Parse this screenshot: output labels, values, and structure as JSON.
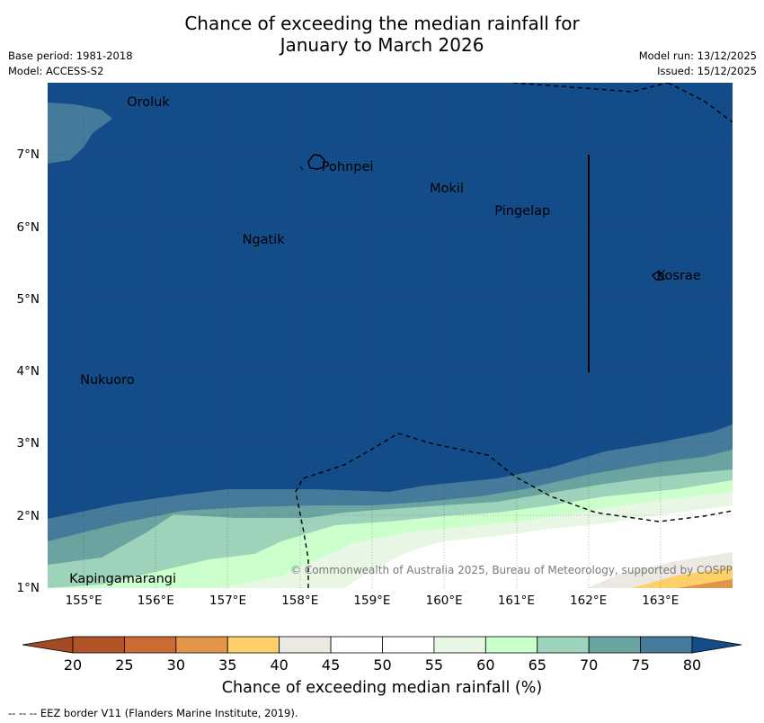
{
  "title": {
    "line1": "Chance of exceeding the median rainfall for",
    "line2": "January to March 2026"
  },
  "meta": {
    "base_period": "Base period: 1981-2018",
    "model": "Model: ACCESS-S2",
    "model_run": "Model run: 13/12/2025",
    "issued": "Issued: 15/12/2025"
  },
  "map": {
    "places": [
      {
        "name": "Oroluk",
        "lat": 7.7,
        "lon": 155.6
      },
      {
        "name": "Pohnpei",
        "lat": 6.8,
        "lon": 158.3
      },
      {
        "name": "Mokil",
        "lat": 6.5,
        "lon": 159.8
      },
      {
        "name": "Pingelap",
        "lat": 6.2,
        "lon": 160.7
      },
      {
        "name": "Ngatik",
        "lat": 5.8,
        "lon": 157.2
      },
      {
        "name": "Kosrae",
        "lat": 5.3,
        "lon": 162.95
      },
      {
        "name": "Nukuoro",
        "lat": 3.85,
        "lon": 154.95
      },
      {
        "name": "Kapingamarangi",
        "lat": 1.1,
        "lon": 154.8
      }
    ],
    "lat_ticks": [
      "1°N",
      "2°N",
      "3°N",
      "4°N",
      "5°N",
      "6°N",
      "7°N"
    ],
    "lon_ticks": [
      "155°E",
      "156°E",
      "157°E",
      "158°E",
      "159°E",
      "160°E",
      "161°E",
      "162°E",
      "163°E"
    ],
    "copyright": "© Commonwealth of Australia 2025, Bureau of Meteorology, supported by COSPPac"
  },
  "colorbar": {
    "ticks": [
      "20",
      "25",
      "30",
      "35",
      "40",
      "45",
      "50",
      "55",
      "60",
      "65",
      "70",
      "75",
      "80"
    ],
    "colors": [
      "#a44a24",
      "#b3532a",
      "#cb6a35",
      "#e2954a",
      "#fdd06a",
      "#ece9e3",
      "#ffffff",
      "#ffffff",
      "#e8f6e4",
      "#cbffcb",
      "#9dd3bb",
      "#6aa3a0",
      "#457a9a",
      "#134c88"
    ],
    "label": "Chance of exceeding median rainfall (%)"
  },
  "footnote": "--  --  -- EEZ border V11 (Flanders Marine Institute, 2019)."
}
